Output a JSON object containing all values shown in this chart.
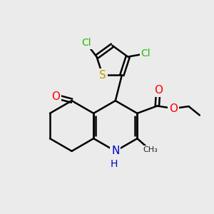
{
  "bg_color": "#ebebeb",
  "bond_color": "#000000",
  "bond_width": 1.8,
  "atom_colors": {
    "C": "#000000",
    "N": "#0000cc",
    "O": "#ff0000",
    "S": "#b8a000",
    "Cl": "#22bb00"
  },
  "font_size": 9,
  "fig_size": [
    3.0,
    3.0
  ],
  "dpi": 100,
  "xlim": [
    0,
    10
  ],
  "ylim": [
    0,
    10
  ]
}
